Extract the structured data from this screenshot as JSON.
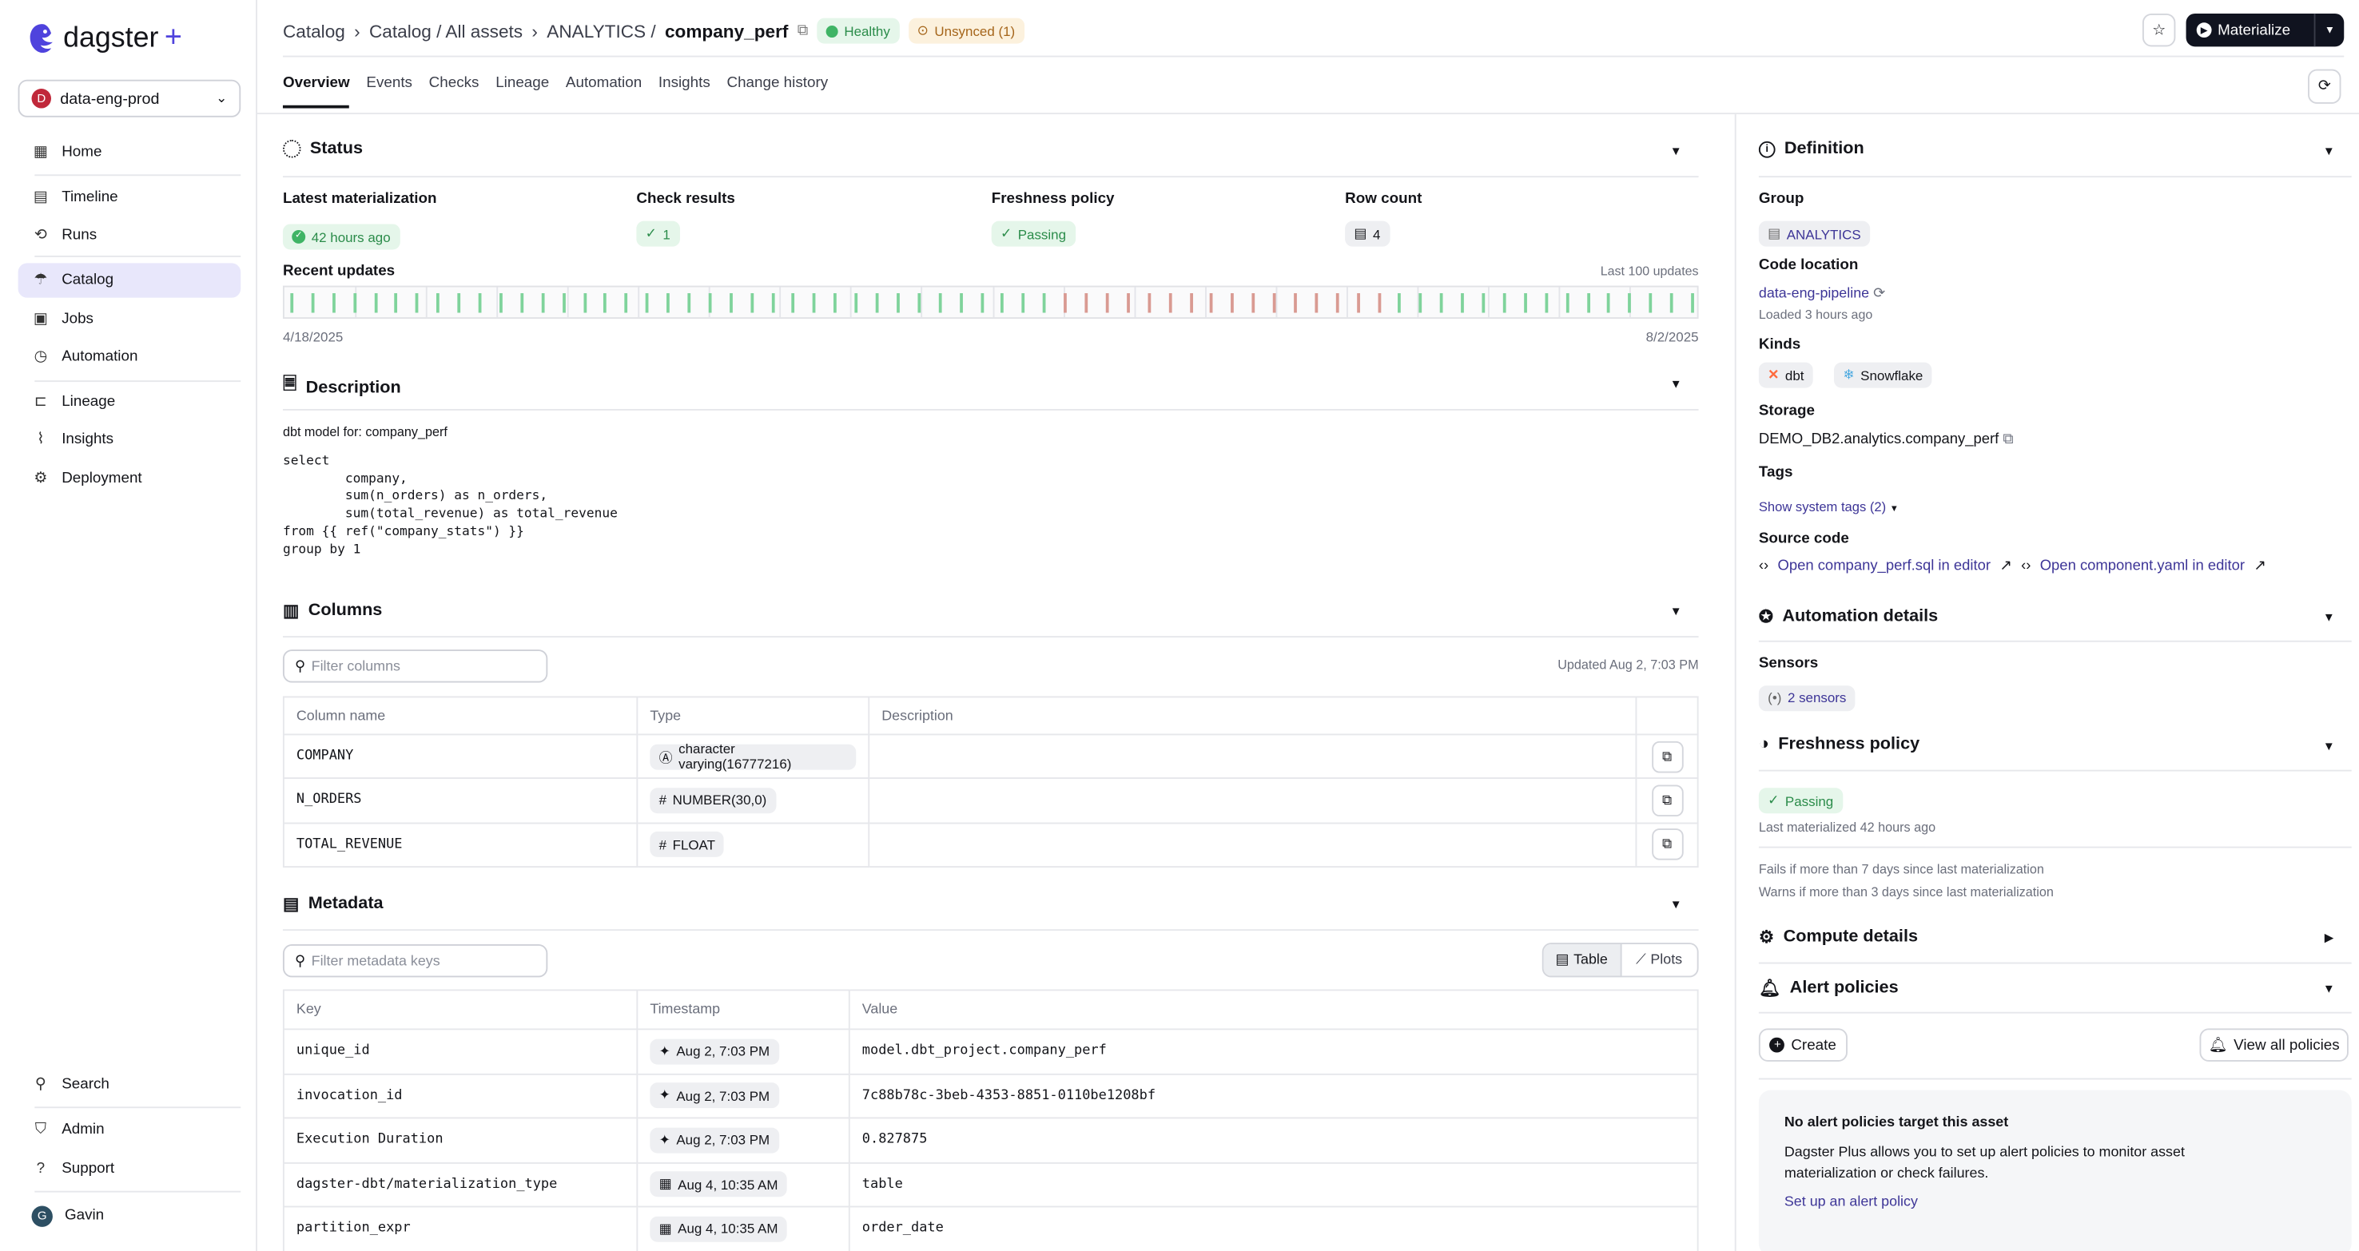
{
  "app": {
    "logo": "dagster",
    "logo_plus": "+",
    "deployment": "data-eng-prod",
    "deployment_initial": "D"
  },
  "sidebar": {
    "items": [
      {
        "label": "Home",
        "icon": "home-grid-icon"
      },
      {
        "label": "Timeline",
        "icon": "timeline-icon"
      },
      {
        "label": "Runs",
        "icon": "runs-icon"
      },
      {
        "label": "Catalog",
        "icon": "catalog-icon",
        "selected": true
      },
      {
        "label": "Jobs",
        "icon": "jobs-icon"
      },
      {
        "label": "Automation",
        "icon": "clock-icon"
      },
      {
        "label": "Lineage",
        "icon": "lineage-icon"
      },
      {
        "label": "Insights",
        "icon": "insights-icon"
      },
      {
        "label": "Deployment",
        "icon": "gear-icon"
      }
    ],
    "bottom": [
      {
        "label": "Search",
        "icon": "search-icon"
      },
      {
        "label": "Admin",
        "icon": "admin-icon"
      },
      {
        "label": "Support",
        "icon": "help-icon"
      }
    ],
    "user": {
      "name": "Gavin",
      "initial": "G"
    }
  },
  "header": {
    "breadcrumb": [
      "Catalog",
      "Catalog / All assets",
      "ANALYTICS /"
    ],
    "asset": "company_perf",
    "health": "Healthy",
    "sync": "Unsynced (1)",
    "materialize": "Materialize"
  },
  "tabs": [
    "Overview",
    "Events",
    "Checks",
    "Lineage",
    "Automation",
    "Insights",
    "Change history"
  ],
  "status": {
    "title": "Status",
    "latest_label": "Latest materialization",
    "latest_value": "42 hours ago",
    "checks_label": "Check results",
    "checks_value": "1",
    "freshness_label": "Freshness policy",
    "freshness_value": "Passing",
    "rows_label": "Row count",
    "rows_value": "4",
    "recent_label": "Recent updates",
    "recent_note": "Last 100 updates",
    "start_date": "4/18/2025",
    "end_date": "8/2/2025",
    "updates": [
      "s",
      "s",
      "s",
      "s",
      "s",
      "s",
      "s",
      "s",
      "s",
      "s",
      "s",
      "s",
      "s",
      "s",
      "s",
      "s",
      "s",
      "s",
      "s",
      "s",
      "s",
      "s",
      "s",
      "s",
      "s",
      "s",
      "s",
      "s",
      "s",
      "s",
      "s",
      "s",
      "s",
      "s",
      "s",
      "s",
      "s",
      "f",
      "f",
      "f",
      "f",
      "f",
      "f",
      "f",
      "f",
      "f",
      "f",
      "f",
      "f",
      "f",
      "f",
      "f",
      "f",
      "s",
      "s",
      "s",
      "s",
      "s",
      "s",
      "s",
      "s",
      "s",
      "s",
      "s",
      "s",
      "s",
      "s",
      "s"
    ],
    "colors": {
      "success": "#7fd39b",
      "failure": "#d99a92"
    }
  },
  "description": {
    "title": "Description",
    "summary": "dbt model for: company_perf",
    "code": "select\n        company,\n        sum(n_orders) as n_orders,\n        sum(total_revenue) as total_revenue\nfrom {{ ref(\"company_stats\") }}\ngroup by 1"
  },
  "columns": {
    "title": "Columns",
    "filter_placeholder": "Filter columns",
    "updated": "Updated Aug 2, 7:03 PM",
    "headers": [
      "Column name",
      "Type",
      "Description"
    ],
    "rows": [
      {
        "name": "COMPANY",
        "type": "character varying(16777216)",
        "type_icon": "Ⓐ"
      },
      {
        "name": "N_ORDERS",
        "type": "NUMBER(30,0)",
        "type_icon": "#"
      },
      {
        "name": "TOTAL_REVENUE",
        "type": "FLOAT",
        "type_icon": "#"
      }
    ]
  },
  "metadata": {
    "title": "Metadata",
    "filter_placeholder": "Filter metadata keys",
    "view_table": "Table",
    "view_plots": "Plots",
    "headers": [
      "Key",
      "Timestamp",
      "Value"
    ],
    "rows": [
      {
        "key": "unique_id",
        "ts": "Aug 2, 7:03 PM",
        "icon": "sparkle-icon",
        "value": "model.dbt_project.company_perf"
      },
      {
        "key": "invocation_id",
        "ts": "Aug 2, 7:03 PM",
        "icon": "sparkle-icon",
        "value": "7c88b78c-3beb-4353-8851-0110be1208bf"
      },
      {
        "key": "Execution Duration",
        "ts": "Aug 2, 7:03 PM",
        "icon": "sparkle-icon",
        "value": "0.827875"
      },
      {
        "key": "dagster-dbt/materialization_type",
        "ts": "Aug 4, 10:35 AM",
        "icon": "table-icon",
        "value": "table"
      },
      {
        "key": "partition_expr",
        "ts": "Aug 4, 10:35 AM",
        "icon": "table-icon",
        "value": "order_date"
      }
    ]
  },
  "definition": {
    "title": "Definition",
    "group_label": "Group",
    "group": "ANALYTICS",
    "code_location_label": "Code location",
    "code_location": "data-eng-pipeline",
    "loaded": "Loaded 3 hours ago",
    "kinds_label": "Kinds",
    "kinds": [
      "dbt",
      "Snowflake"
    ],
    "storage_label": "Storage",
    "storage": "DEMO_DB2.analytics.company_perf",
    "tags_label": "Tags",
    "system_tags": "Show system tags (2)",
    "source_label": "Source code",
    "source_links": [
      "Open company_perf.sql in editor",
      "Open component.yaml in editor"
    ]
  },
  "automation": {
    "title": "Automation details",
    "sensors_label": "Sensors",
    "sensors": "2 sensors"
  },
  "freshness": {
    "title": "Freshness policy",
    "status": "Passing",
    "last": "Last materialized 42 hours ago",
    "fail_rule": "Fails if more than 7 days since last materialization",
    "warn_rule": "Warns if more than 3 days since last materialization"
  },
  "compute": {
    "title": "Compute details"
  },
  "alerts": {
    "title": "Alert policies",
    "create": "Create",
    "view_all": "View all policies",
    "empty_title": "No alert policies target this asset",
    "empty_body": "Dagster Plus allows you to set up alert policies to monitor asset materialization or check failures.",
    "setup_link": "Set up an alert policy"
  }
}
